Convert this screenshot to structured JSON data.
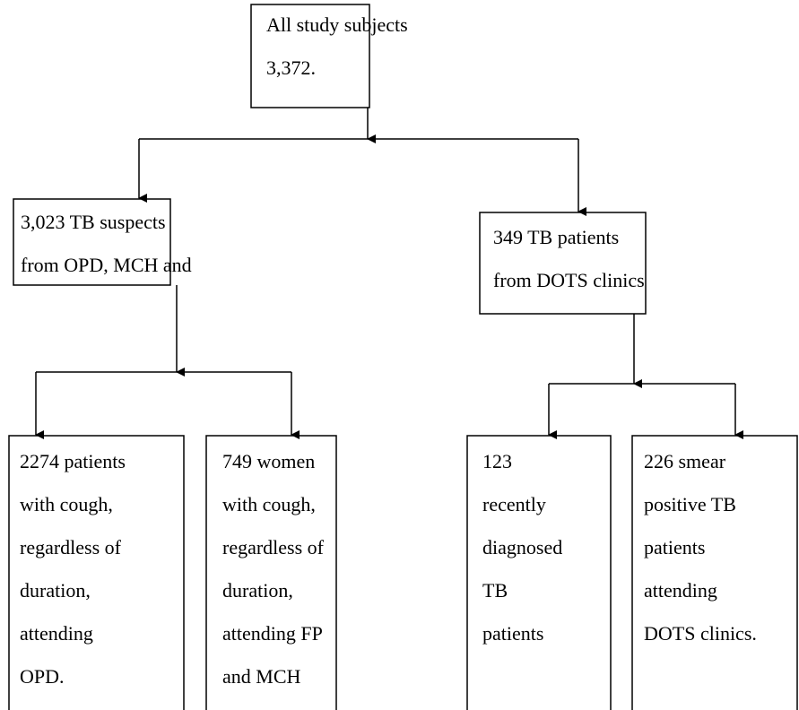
{
  "nodes": [
    {
      "lines": [
        "All study subjects",
        "3,372."
      ]
    },
    {
      "lines": [
        "3,023 TB suspects",
        "from OPD, MCH and"
      ]
    },
    {
      "lines": [
        "349 TB patients",
        "from DOTS clinics"
      ]
    },
    {
      "lines": [
        "2274 patients",
        "with cough,",
        "regardless of",
        "duration,",
        "attending",
        "OPD."
      ]
    },
    {
      "lines": [
        "749 women",
        "with cough,",
        "regardless of",
        "duration,",
        "attending FP",
        "and MCH"
      ]
    },
    {
      "lines": [
        "123",
        "recently",
        "diagnosed",
        "TB",
        "patients"
      ]
    },
    {
      "lines": [
        "226 smear",
        "positive TB",
        "patients",
        "attending",
        "DOTS clinics."
      ]
    }
  ]
}
